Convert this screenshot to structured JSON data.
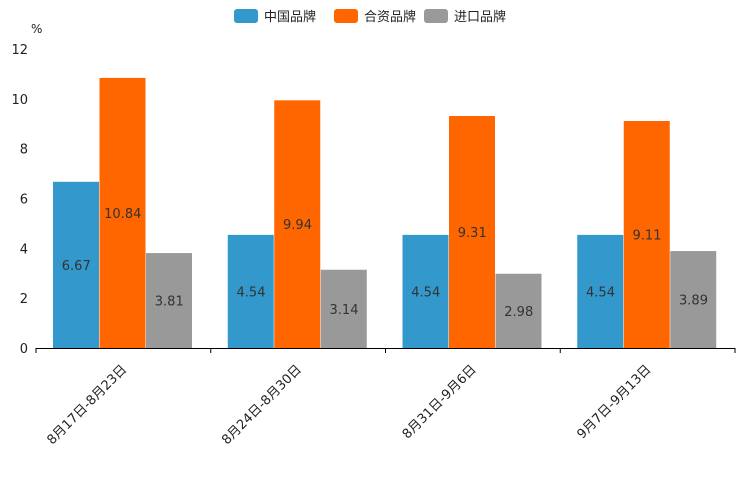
{
  "chart_data": {
    "type": "bar",
    "title": "",
    "unit": "%",
    "xlabel": "",
    "ylabel": "%",
    "ylim": [
      0,
      12
    ],
    "yticks": [
      0,
      2,
      4,
      6,
      8,
      10,
      12
    ],
    "grid": false,
    "legend_position": "top-center",
    "categories": [
      "8月17日-8月23日",
      "8月24日-8月30日",
      "8月31日-9月6日",
      "9月7日-9月13日"
    ],
    "series": [
      {
        "name": "中国品牌",
        "color": "#3399CC",
        "values": [
          6.67,
          4.54,
          4.54,
          4.54
        ]
      },
      {
        "name": "合资品牌",
        "color": "#FF6600",
        "values": [
          10.84,
          9.94,
          9.31,
          9.11
        ]
      },
      {
        "name": "进口品牌",
        "color": "#999999",
        "values": [
          3.81,
          3.14,
          2.98,
          3.89
        ]
      }
    ]
  }
}
